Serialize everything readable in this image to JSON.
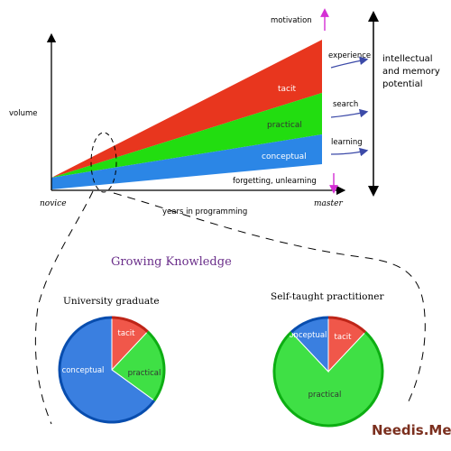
{
  "main_chart": {
    "y_axis_label": "volume",
    "x_axis_label": "years in programming",
    "x_start_label": "novice",
    "x_end_label": "master",
    "layers": [
      {
        "name": "tacit",
        "color": "#e8361e"
      },
      {
        "name": "practical",
        "color": "#22dd10"
      },
      {
        "name": "conceptual",
        "color": "#2b86e6"
      }
    ],
    "bottom_band_label": "forgetting, unlearning",
    "top_marker_label": "motivation"
  },
  "side_labels": {
    "experience": "experience",
    "search": "search",
    "learning": "learning"
  },
  "potential_label": {
    "line1": "intellectual",
    "line2": "and memory",
    "line3": "potential"
  },
  "growing_title": "Growing Knowledge",
  "pie_graduate": {
    "title": "University graduate",
    "slices": [
      {
        "label": "tacit",
        "fraction": 0.12,
        "color": "#f0574a"
      },
      {
        "label": "practical",
        "fraction": 0.23,
        "color": "#3fe045"
      },
      {
        "label": "conceptual",
        "fraction": 0.65,
        "color": "#3a7fe0"
      }
    ]
  },
  "pie_selftaught": {
    "title": "Self-taught practitioner",
    "slices": [
      {
        "label": "tacit",
        "fraction": 0.12,
        "color": "#f0574a"
      },
      {
        "label": "practical",
        "fraction": 0.76,
        "color": "#3fe045"
      },
      {
        "label": "conceptual",
        "fraction": 0.12,
        "color": "#3a7fe0"
      }
    ]
  },
  "brand": "Needis.Me"
}
